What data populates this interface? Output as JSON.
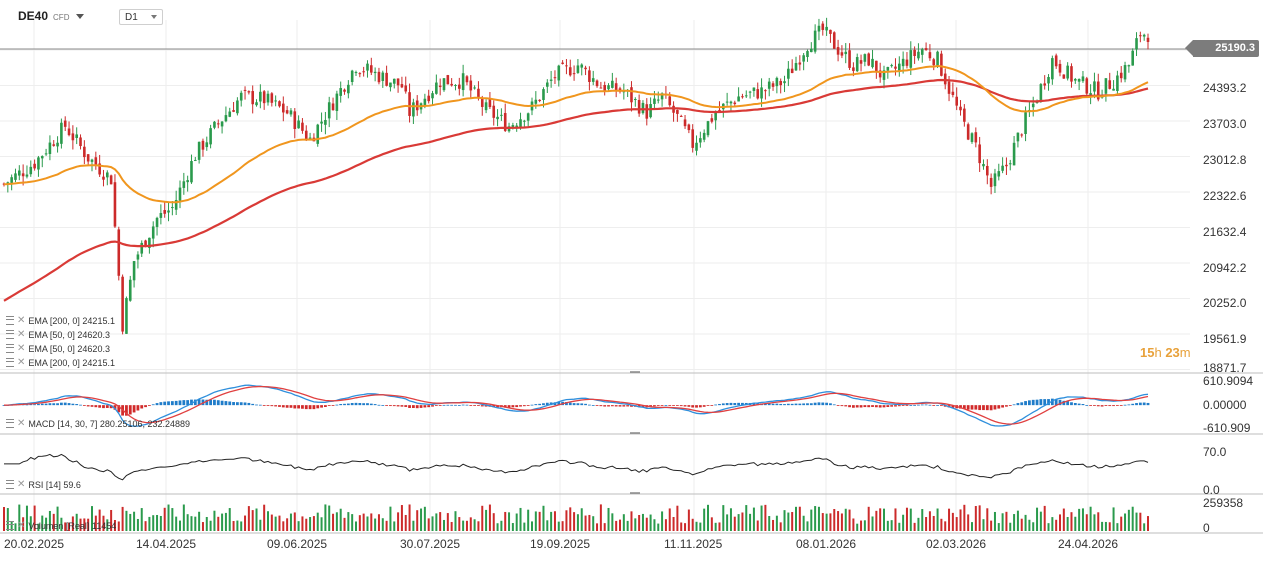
{
  "instrument": {
    "symbol": "DE40",
    "type": "CFD",
    "timeframe": "D1"
  },
  "last_price": "25190.3",
  "countdown": {
    "hours": "15",
    "h": "h",
    "minutes": "23",
    "m": "m"
  },
  "price_axis": {
    "labels": [
      "24393.2",
      "23703.0",
      "23012.8",
      "22322.6",
      "21632.4",
      "20942.2",
      "20252.0",
      "19561.9",
      "18871.7"
    ],
    "min": 18871.7,
    "max": 25450
  },
  "macd_axis": {
    "labels": [
      "610.9094",
      "0.00000",
      "-610.909"
    ],
    "min": -700,
    "max": 760
  },
  "rsi_axis": {
    "labels": [
      "70.0",
      "0.0"
    ],
    "min": 0,
    "max": 100
  },
  "volume_axis": {
    "labels": [
      "259358",
      "0"
    ],
    "min": 0,
    "max": 280000
  },
  "x_axis": {
    "labels": [
      "20.02.2025",
      "14.04.2025",
      "09.06.2025",
      "30.07.2025",
      "19.09.2025",
      "11.11.2025",
      "08.01.2026",
      "02.03.2026",
      "24.04.2026"
    ]
  },
  "indicators": [
    {
      "label": "EMA [200, 0] 24215.1"
    },
    {
      "label": "EMA [50, 0] 24620.3"
    },
    {
      "label": "EMA [50, 0] 24620.3"
    },
    {
      "label": "EMA [200, 0] 24215.1"
    }
  ],
  "macd_legend": "MACD [14, 30, 7] 280.25106, 232.24889",
  "rsi_legend": "RSI [14] 59.6",
  "volume_legend": "Volumen [Real] 11454",
  "colors": {
    "up": "#2a9a4c",
    "down": "#cc2a2a",
    "ema50": "#f0961e",
    "ema200": "#d93a36",
    "macd_line": "#2f8fdc",
    "signal_line": "#e04040",
    "hist_pos": "#1f7cc9",
    "hist_neg": "#d12a2a",
    "rsi": "#222222",
    "grid": "#eeeeee"
  },
  "chart_data": {
    "type": "candlestick",
    "key_points": {
      "x": [
        "20.02.2025",
        "14.04.2025",
        "09.06.2025",
        "30.07.2025",
        "19.09.2025",
        "11.11.2025",
        "08.01.2026",
        "02.03.2026",
        "24.04.2026"
      ],
      "close": [
        22300,
        21600,
        23900,
        24000,
        23600,
        23500,
        25200,
        23600,
        24500
      ]
    },
    "extremes": {
      "high": 25400,
      "low": 19350
    },
    "last": 25190.3,
    "ema50_last": 24620.3,
    "ema200_last": 24215.1,
    "rsi_last": 59.6,
    "macd_last": [
      280.25106,
      232.24889
    ],
    "volume_last": 11454
  }
}
